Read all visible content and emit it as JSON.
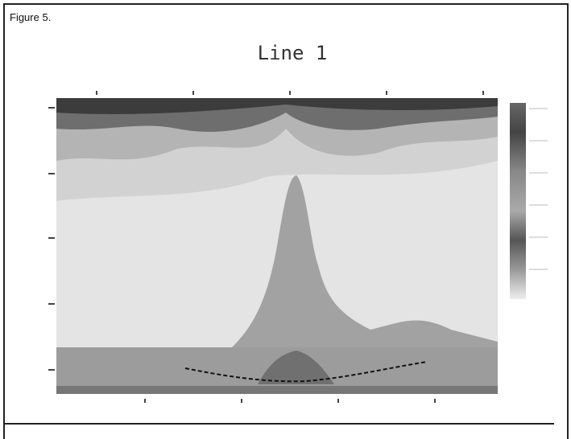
{
  "caption": "Figure 5.",
  "figure": {
    "title": "Line 1"
  }
}
